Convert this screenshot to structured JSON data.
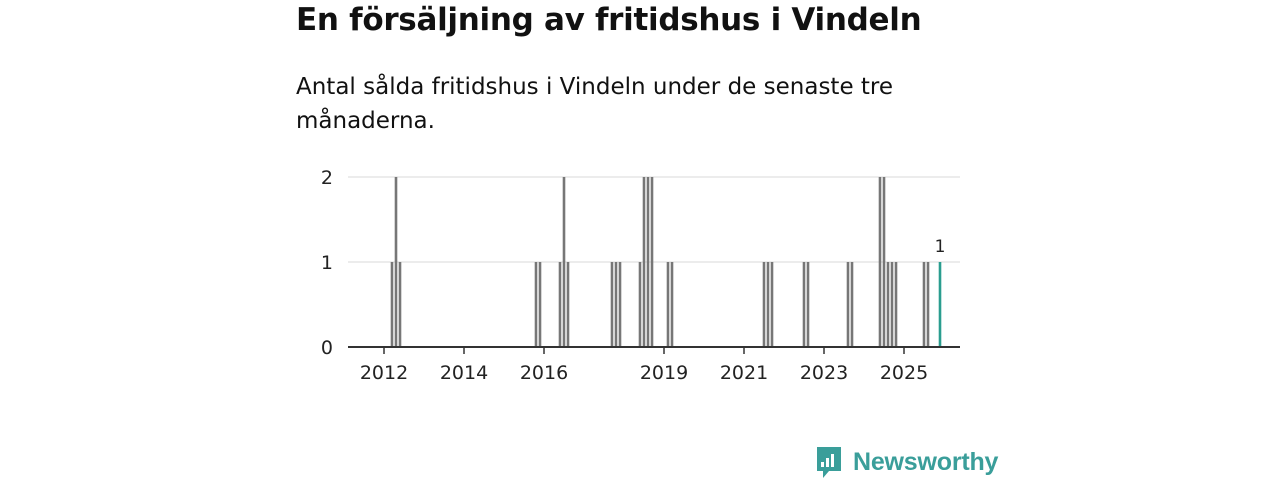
{
  "header": {
    "title": "En försäljning av fritidshus i Vindeln",
    "subtitle": "Antal sålda fritidshus i Vindeln under de senaste tre månaderna."
  },
  "brand": {
    "name": "Newsworthy",
    "color": "#3a9e9a"
  },
  "chart_data": {
    "type": "bar",
    "title": "En försäljning av fritidshus i Vindeln",
    "subtitle": "Antal sålda fritidshus i Vindeln under de senaste tre månaderna.",
    "xlabel": "",
    "ylabel": "",
    "ylim": [
      0,
      2
    ],
    "yticks": [
      0,
      1,
      2
    ],
    "xticks": [
      "2012",
      "2014",
      "2016",
      "2019",
      "2021",
      "2023",
      "2025"
    ],
    "xtick_values": [
      2012.0,
      2014.0,
      2016.0,
      2019.0,
      2021.0,
      2023.0,
      2025.0
    ],
    "grid": true,
    "bar_color": "#777777",
    "highlight_color": "#2a9d8f",
    "last_value_label": "1",
    "x": [
      2012.2,
      2012.3,
      2012.4,
      2015.8,
      2015.9,
      2016.4,
      2016.5,
      2016.6,
      2017.7,
      2017.8,
      2017.9,
      2018.4,
      2018.5,
      2018.6,
      2018.7,
      2019.1,
      2019.2,
      2021.5,
      2021.6,
      2021.7,
      2022.5,
      2022.6,
      2023.6,
      2023.7,
      2024.4,
      2024.5,
      2024.6,
      2024.7,
      2024.8,
      2025.5,
      2025.6,
      2025.9
    ],
    "values": [
      1,
      2,
      1,
      1,
      1,
      1,
      2,
      1,
      1,
      1,
      1,
      1,
      2,
      2,
      2,
      1,
      1,
      1,
      1,
      1,
      1,
      1,
      1,
      1,
      2,
      2,
      1,
      1,
      1,
      1,
      1,
      1
    ]
  }
}
